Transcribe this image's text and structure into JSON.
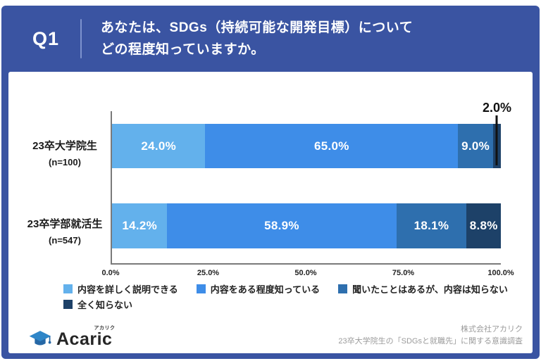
{
  "header": {
    "q_label": "Q1",
    "question_lines": [
      "あなたは、SDGs（持続可能な開発目標）について",
      "どの程度知っていますか。"
    ]
  },
  "chart_data": {
    "type": "bar",
    "orientation": "horizontal",
    "stacked": true,
    "categories": [
      {
        "label": "23卒大学院生",
        "note": "(n=100)"
      },
      {
        "label": "23卒学部就活生",
        "note": "(n=547)"
      }
    ],
    "series": [
      {
        "name": "内容を詳しく説明できる",
        "color": "#63b1ec",
        "values": [
          24.0,
          14.2
        ]
      },
      {
        "name": "内容をある程度知っている",
        "color": "#3e8de8",
        "values": [
          65.0,
          58.9
        ]
      },
      {
        "name": "聞いたことはあるが、内容は知らない",
        "color": "#2e6fae",
        "values": [
          9.0,
          18.1
        ]
      },
      {
        "name": "全く知らない",
        "color": "#1d4168",
        "values": [
          2.0,
          8.8
        ]
      }
    ],
    "value_labels": [
      [
        "24.0%",
        "65.0%",
        "9.0%",
        "2.0%"
      ],
      [
        "14.2%",
        "58.9%",
        "18.1%",
        "8.8%"
      ]
    ],
    "outside_label": {
      "row": 0,
      "segment": 3
    },
    "x_ticks": [
      "0.0%",
      "25.0%",
      "50.0%",
      "75.0%",
      "100.0%"
    ],
    "xlim": [
      0,
      100
    ],
    "grid": false,
    "legend_position": "bottom"
  },
  "footer": {
    "logo_text": "Acaric",
    "logo_furigana": "アカリク",
    "credit_lines": [
      "株式会社アカリク",
      "23卒大学院生の「SDGsと就職先」に関する意識調査"
    ]
  },
  "colors": {
    "frame": "#3a54a2",
    "divider": "#7d92cd",
    "axis": "#7a7a7a",
    "callout": "#111111"
  }
}
